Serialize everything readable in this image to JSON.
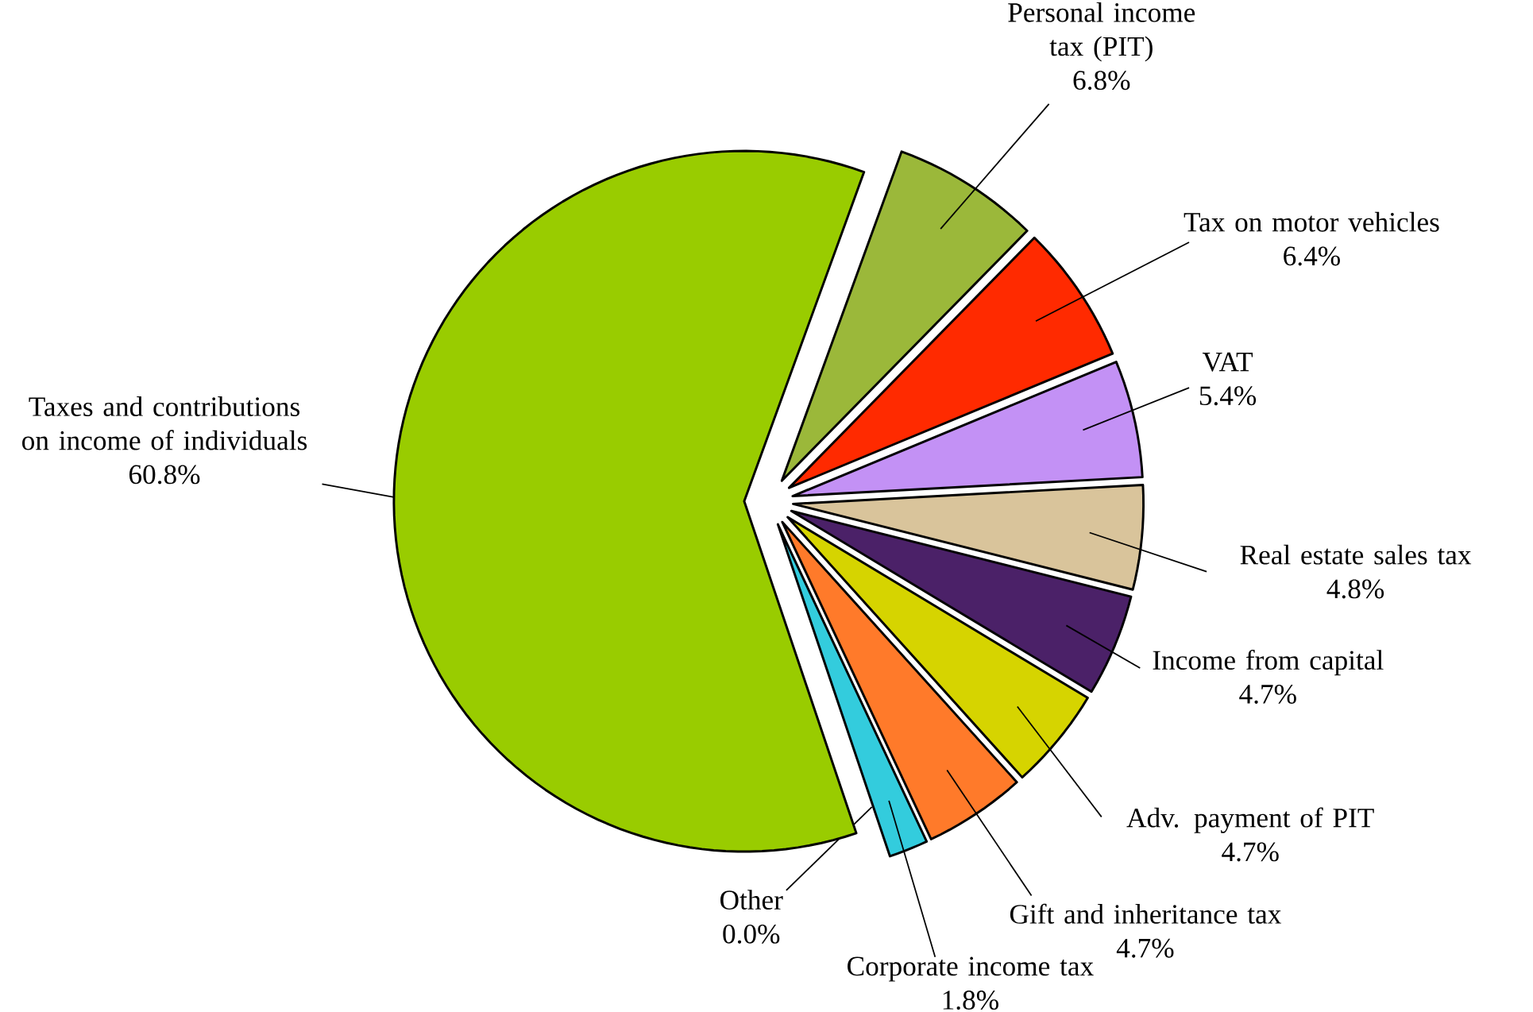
{
  "chart_data": {
    "type": "pie",
    "categories": [
      "Personal income tax (PIT)",
      "Tax on motor vehicles",
      "VAT",
      "Real estate sales tax",
      "Income from capital",
      "Adv. payment of PIT",
      "Gift and inheritance tax",
      "Corporate income tax",
      "Other",
      "Taxes and contributions on income of individuals"
    ],
    "values": [
      6.8,
      6.4,
      5.4,
      4.8,
      4.7,
      4.7,
      4.7,
      1.8,
      0.0,
      60.8
    ],
    "value_labels": [
      "6.8%",
      "6.4%",
      "5.4%",
      "4.8%",
      "4.7%",
      "4.7%",
      "4.7%",
      "1.8%",
      "0.0%",
      "60.8%"
    ],
    "colors": [
      "#9bb83a",
      "#ff2a00",
      "#c391f5",
      "#d9c49b",
      "#4b2168",
      "#d6d400",
      "#ff7a2a",
      "#33ccdd",
      "#2255cc",
      "#99cc00"
    ]
  }
}
